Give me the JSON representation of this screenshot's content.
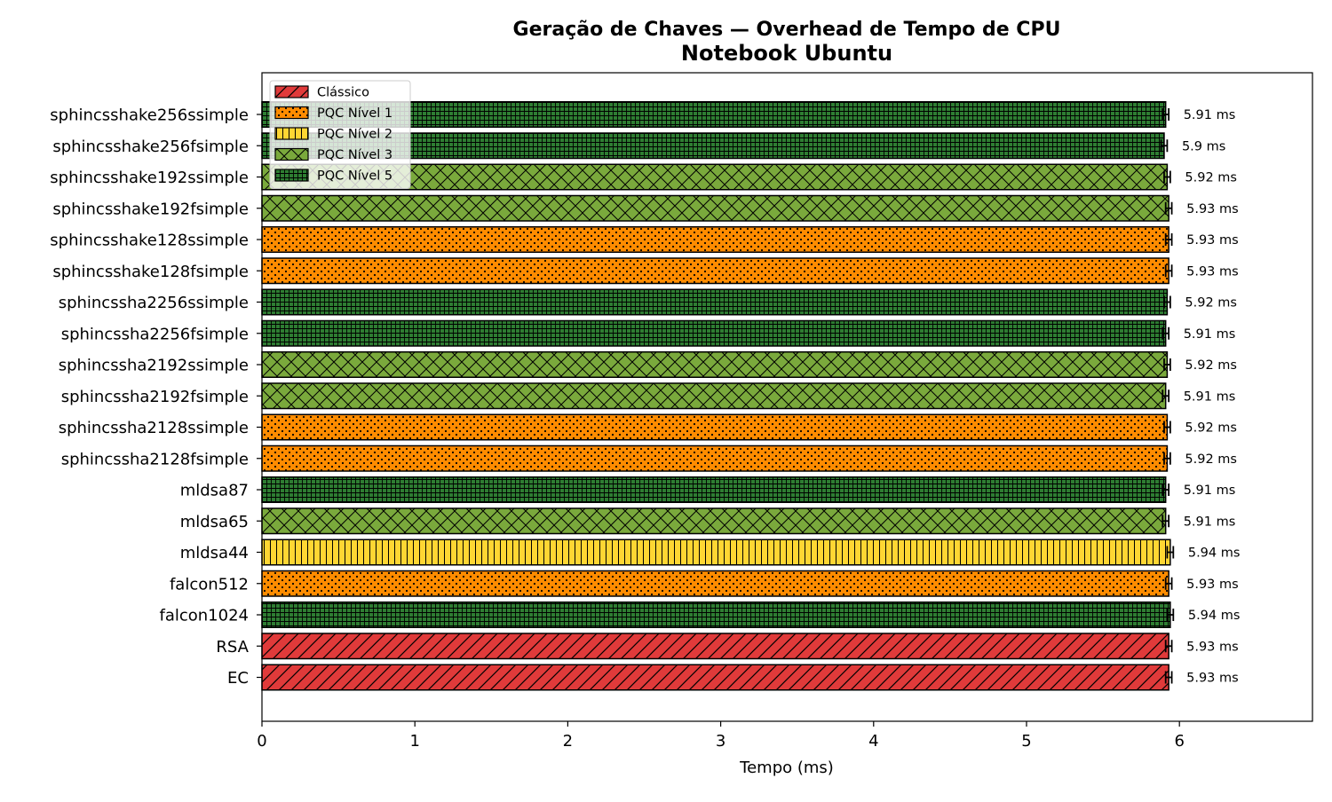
{
  "chart_data": {
    "type": "bar",
    "orientation": "horizontal",
    "title": "Geração de Chaves — Overhead de Tempo de CPU",
    "subtitle": "Notebook Ubuntu",
    "xlabel": "Tempo (ms)",
    "ylabel": "",
    "xlim": [
      0,
      6.87
    ],
    "xticks": [
      0,
      1,
      2,
      3,
      4,
      5,
      6
    ],
    "grid": false,
    "legend_position": "top-left",
    "value_suffix": " ms",
    "legend": [
      {
        "key": "classico",
        "label": "Clássico",
        "color": "#e03a3a",
        "pattern": "diagonal"
      },
      {
        "key": "n1",
        "label": "PQC Nível 1",
        "color": "#ff8c00",
        "pattern": "dots"
      },
      {
        "key": "n2",
        "label": "PQC Nível 2",
        "color": "#ffd633",
        "pattern": "vertical"
      },
      {
        "key": "n3",
        "label": "PQC Nível 3",
        "color": "#7aa93c",
        "pattern": "crosshatch"
      },
      {
        "key": "n5",
        "label": "PQC Nível 5",
        "color": "#2e7d32",
        "pattern": "grid"
      }
    ],
    "bars": [
      {
        "label": "sphincsshake256ssimple",
        "value": 5.91,
        "value_text": "5.91 ms",
        "error": 0.02,
        "group": "n5"
      },
      {
        "label": "sphincsshake256fsimple",
        "value": 5.9,
        "value_text": "5.9 ms",
        "error": 0.02,
        "group": "n5"
      },
      {
        "label": "sphincsshake192ssimple",
        "value": 5.92,
        "value_text": "5.92 ms",
        "error": 0.02,
        "group": "n3"
      },
      {
        "label": "sphincsshake192fsimple",
        "value": 5.93,
        "value_text": "5.93 ms",
        "error": 0.02,
        "group": "n3"
      },
      {
        "label": "sphincsshake128ssimple",
        "value": 5.93,
        "value_text": "5.93 ms",
        "error": 0.02,
        "group": "n1"
      },
      {
        "label": "sphincsshake128fsimple",
        "value": 5.93,
        "value_text": "5.93 ms",
        "error": 0.02,
        "group": "n1"
      },
      {
        "label": "sphincssha2256ssimple",
        "value": 5.92,
        "value_text": "5.92 ms",
        "error": 0.02,
        "group": "n5"
      },
      {
        "label": "sphincssha2256fsimple",
        "value": 5.91,
        "value_text": "5.91 ms",
        "error": 0.02,
        "group": "n5"
      },
      {
        "label": "sphincssha2192ssimple",
        "value": 5.92,
        "value_text": "5.92 ms",
        "error": 0.02,
        "group": "n3"
      },
      {
        "label": "sphincssha2192fsimple",
        "value": 5.91,
        "value_text": "5.91 ms",
        "error": 0.02,
        "group": "n3"
      },
      {
        "label": "sphincssha2128ssimple",
        "value": 5.92,
        "value_text": "5.92 ms",
        "error": 0.02,
        "group": "n1"
      },
      {
        "label": "sphincssha2128fsimple",
        "value": 5.92,
        "value_text": "5.92 ms",
        "error": 0.02,
        "group": "n1"
      },
      {
        "label": "mldsa87",
        "value": 5.91,
        "value_text": "5.91 ms",
        "error": 0.02,
        "group": "n5"
      },
      {
        "label": "mldsa65",
        "value": 5.91,
        "value_text": "5.91 ms",
        "error": 0.02,
        "group": "n3"
      },
      {
        "label": "mldsa44",
        "value": 5.94,
        "value_text": "5.94 ms",
        "error": 0.02,
        "group": "n2"
      },
      {
        "label": "falcon512",
        "value": 5.93,
        "value_text": "5.93 ms",
        "error": 0.02,
        "group": "n1"
      },
      {
        "label": "falcon1024",
        "value": 5.94,
        "value_text": "5.94 ms",
        "error": 0.02,
        "group": "n5"
      },
      {
        "label": "RSA",
        "value": 5.93,
        "value_text": "5.93 ms",
        "error": 0.02,
        "group": "classico"
      },
      {
        "label": "EC",
        "value": 5.93,
        "value_text": "5.93 ms",
        "error": 0.02,
        "group": "classico"
      }
    ]
  }
}
